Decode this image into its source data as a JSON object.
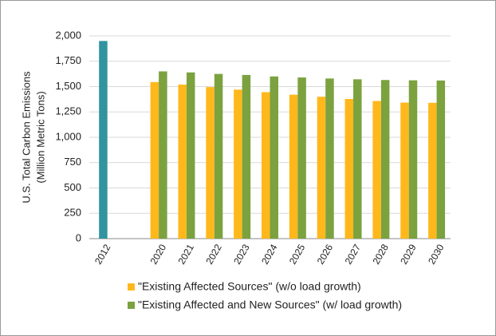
{
  "chart_data": {
    "type": "bar",
    "y_label": [
      "U.S. Total Carbon Emissions",
      "(Million Metric Tons)"
    ],
    "categories": [
      "2012",
      null,
      "2020",
      "2021",
      "2022",
      "2023",
      "2024",
      "2025",
      "2026",
      "2027",
      "2028",
      "2029",
      "2030"
    ],
    "series": [
      {
        "color": "#31949f",
        "values": [
          1950,
          null,
          null,
          null,
          null,
          null,
          null,
          null,
          null,
          null,
          null,
          null,
          null
        ]
      },
      {
        "name": "\"Existing Affected Sources\" (w/o load growth)",
        "color": "#ffb81c",
        "values": [
          null,
          null,
          1545,
          1520,
          1495,
          1470,
          1445,
          1420,
          1400,
          1378,
          1358,
          1342,
          1340
        ]
      },
      {
        "name": "\"Existing Affected and New Sources\" (w/ load growth)",
        "color": "#7ba23f",
        "values": [
          null,
          null,
          1650,
          1640,
          1625,
          1615,
          1600,
          1590,
          1580,
          1572,
          1565,
          1562,
          1560
        ]
      }
    ],
    "ylim": [
      0,
      2000
    ],
    "yticks": [
      0,
      250,
      500,
      750,
      {
        "value": 1000,
        "label": "1,000"
      },
      {
        "value": 1250,
        "label": "1,250"
      },
      {
        "value": 1500,
        "label": "1,500"
      },
      {
        "value": 1750,
        "label": "1,750"
      },
      {
        "value": 2000,
        "label": "2,000"
      }
    ],
    "grid": true,
    "legend": "bottom"
  }
}
